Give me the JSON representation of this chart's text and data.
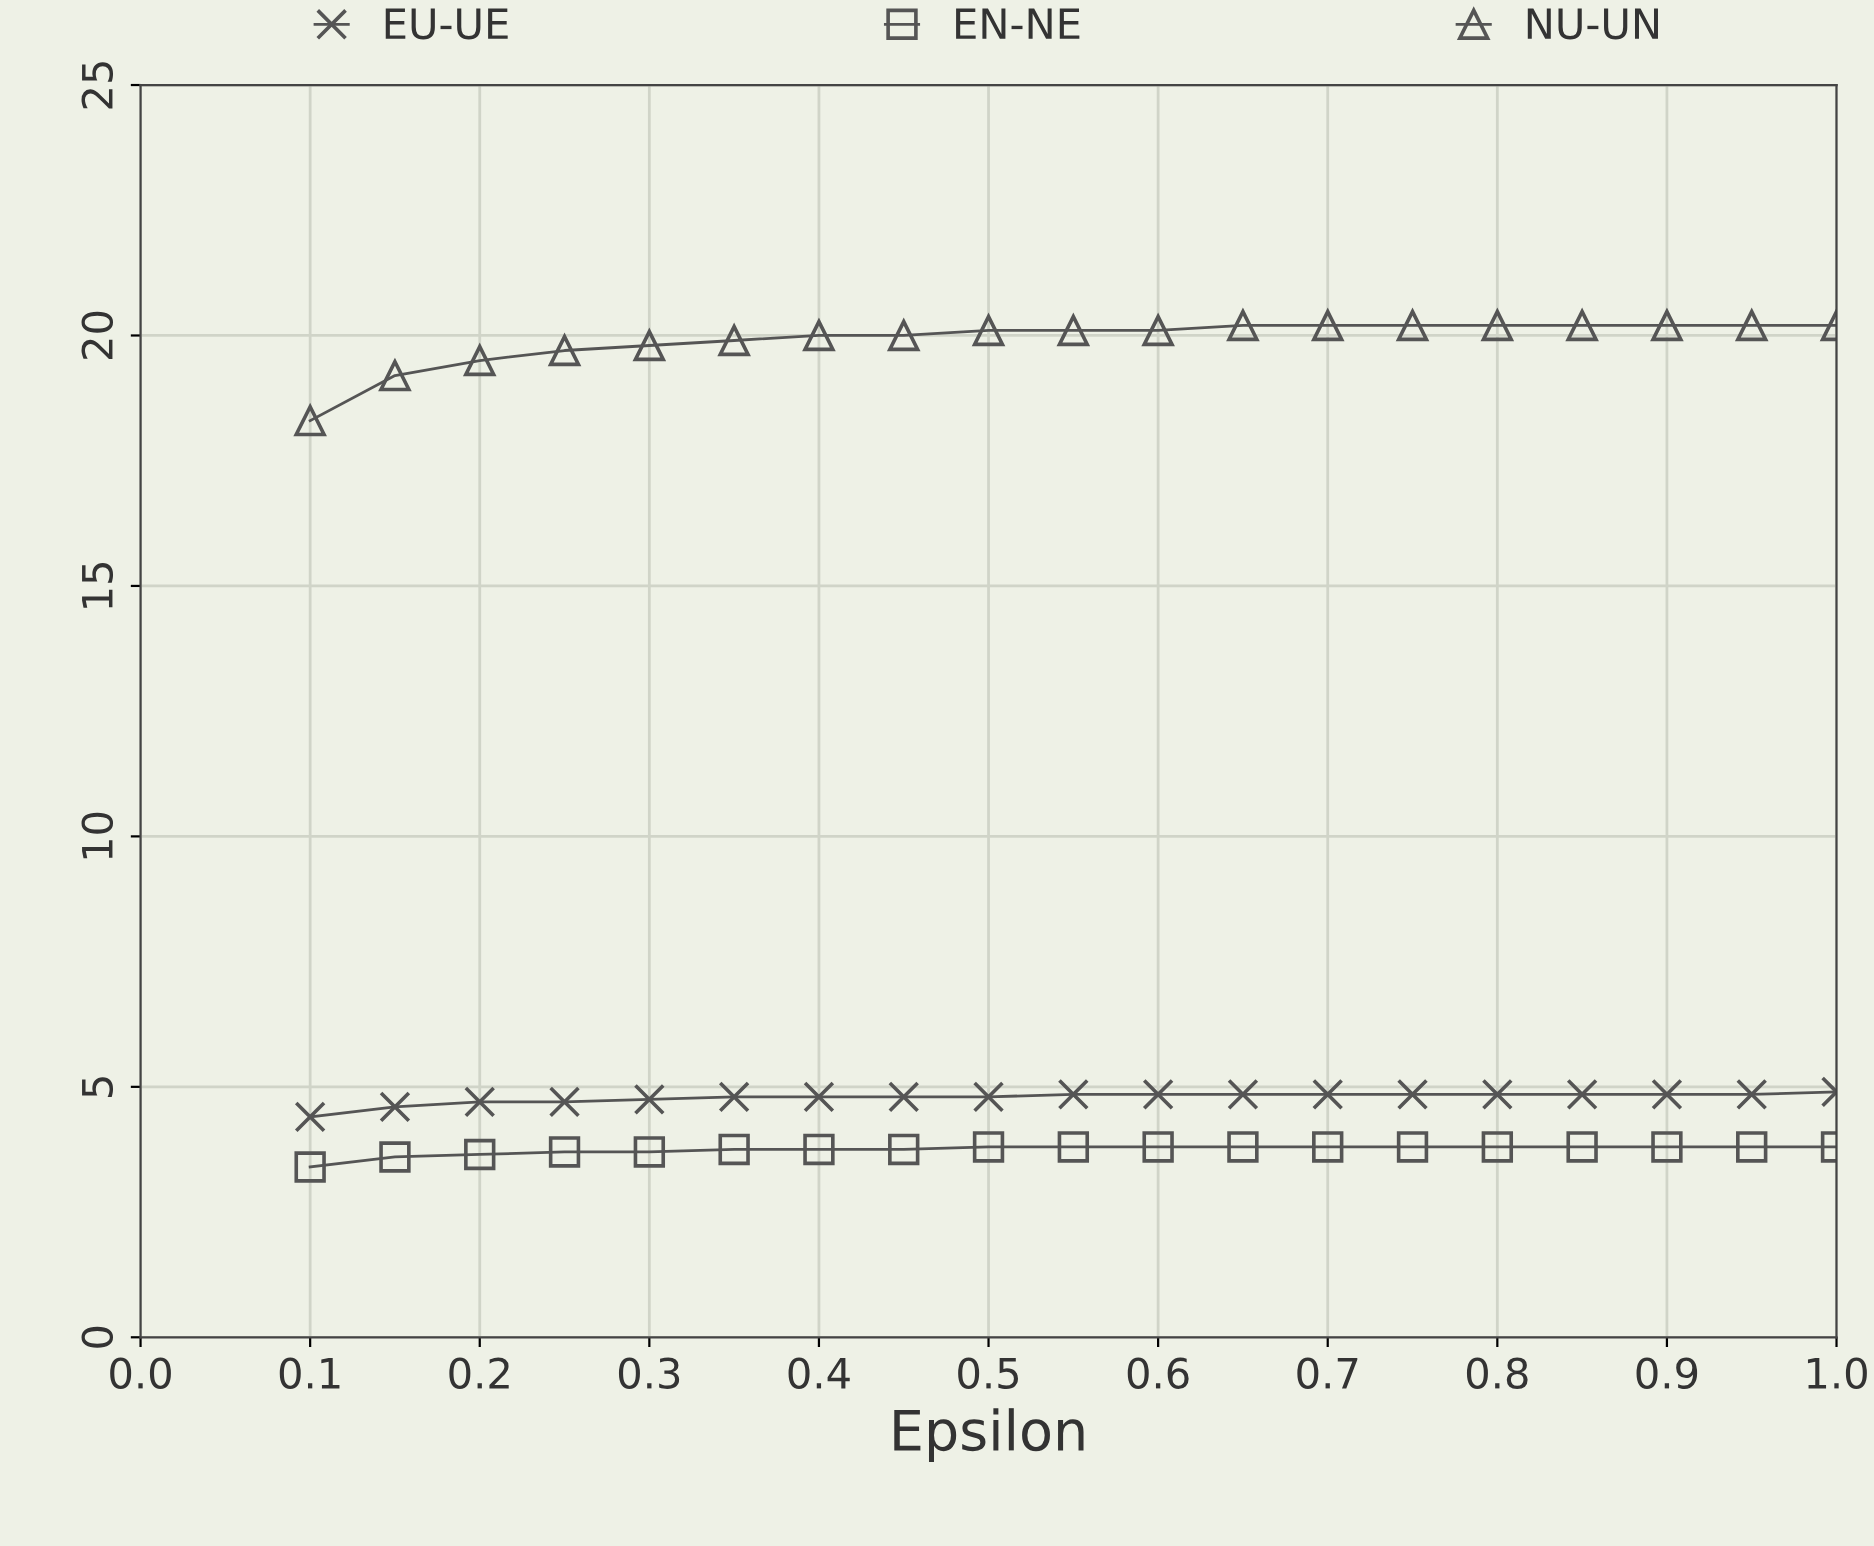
{
  "chart_data": {
    "type": "line",
    "xlabel": "Epsilon",
    "x": [
      0.1,
      0.15,
      0.2,
      0.25,
      0.3,
      0.35,
      0.4,
      0.45,
      0.5,
      0.55,
      0.6,
      0.65,
      0.7,
      0.75,
      0.8,
      0.85,
      0.9,
      0.95,
      1.0
    ],
    "series": [
      {
        "name": "EU-UE",
        "color": "#555555",
        "marker": "cross",
        "values": [
          4.4,
          4.6,
          4.7,
          4.7,
          4.75,
          4.8,
          4.8,
          4.8,
          4.8,
          4.85,
          4.85,
          4.85,
          4.85,
          4.85,
          4.85,
          4.85,
          4.85,
          4.85,
          4.9
        ]
      },
      {
        "name": "EN-NE",
        "color": "#555555",
        "marker": "square",
        "values": [
          3.4,
          3.6,
          3.65,
          3.7,
          3.7,
          3.75,
          3.75,
          3.75,
          3.8,
          3.8,
          3.8,
          3.8,
          3.8,
          3.8,
          3.8,
          3.8,
          3.8,
          3.8,
          3.8
        ]
      },
      {
        "name": "NU-UN",
        "color": "#555555",
        "marker": "triangle",
        "values": [
          18.3,
          19.2,
          19.5,
          19.7,
          19.8,
          19.9,
          20.0,
          20.0,
          20.1,
          20.1,
          20.1,
          20.2,
          20.2,
          20.2,
          20.2,
          20.2,
          20.2,
          20.2,
          20.2
        ]
      }
    ],
    "xlim": [
      0.0,
      1.0
    ],
    "xticks": [
      {
        "value": 0.0,
        "label": "0.0"
      },
      {
        "value": 0.1,
        "label": "0.1"
      },
      {
        "value": 0.2,
        "label": "0.2"
      },
      {
        "value": 0.3,
        "label": "0.3"
      },
      {
        "value": 0.4,
        "label": "0.4"
      },
      {
        "value": 0.5,
        "label": "0.5"
      },
      {
        "value": 0.6,
        "label": "0.6"
      },
      {
        "value": 0.7,
        "label": "0.7"
      },
      {
        "value": 0.8,
        "label": "0.8"
      },
      {
        "value": 0.9,
        "label": "0.9"
      },
      {
        "value": 1.0,
        "label": "1.0"
      }
    ],
    "ylim": [
      0,
      25
    ],
    "yticks": [
      0,
      5,
      10,
      15,
      20,
      25
    ],
    "grid": true,
    "legend": "top",
    "line_style": "solid"
  }
}
